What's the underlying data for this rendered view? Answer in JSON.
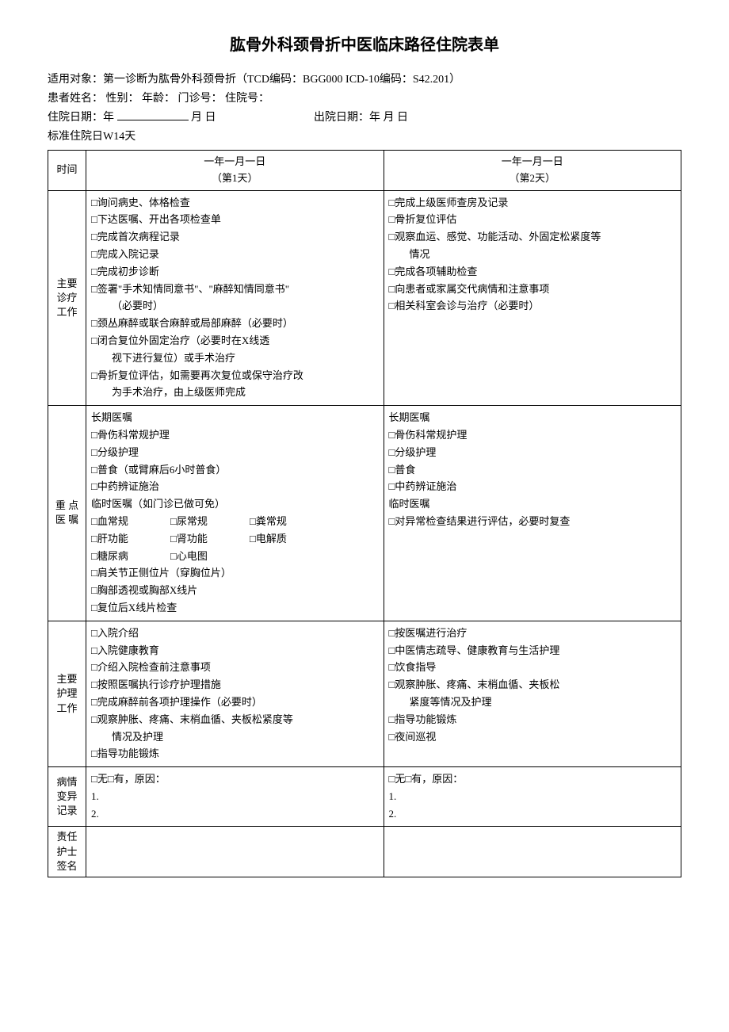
{
  "title": "肱骨外科颈骨折中医临床路径住院表单",
  "meta": {
    "applicable": "适用对象：第一诊断为肱骨外科颈骨折（TCD编码：BGG000 ICD-10编码：S42.201）",
    "patient_line": "患者姓名：  性别：  年龄：  门诊号：  住院号：",
    "admission_label": "住院日期：年",
    "admission_suffix": "月 日",
    "discharge_label": "出院日期：年 月 日",
    "standard_days": "标准住院日W14天"
  },
  "headers": {
    "time": "时间",
    "day1_date": "一年一月一日",
    "day1_sub": "（第1天）",
    "day2_date": "一年一月一日",
    "day2_sub": "（第2天）"
  },
  "rows": {
    "main_work": {
      "label": "主要诊疗工作",
      "day1": [
        "□询问病史、体格检查",
        "□下达医嘱、开出各项检查单",
        "□完成首次病程记录",
        "□完成入院记录",
        "□完成初步诊断",
        "□签署\"手术知情同意书\"、\"麻醉知情同意书\"",
        "  （必要时）",
        "□颈丛麻醉或联合麻醉或局部麻醉（必要时）",
        "□闭合复位外固定治疗（必要时在X线透",
        "  视下进行复位）或手术治疗",
        "□骨折复位评估，如需要再次复位或保守治疗改",
        "  为手术治疗，由上级医师完成"
      ],
      "day2": [
        "□完成上级医师查房及记录",
        "□骨折复位评估",
        "□观察血运、感觉、功能活动、外固定松紧度等",
        "  情况",
        "□完成各项辅助检查",
        "□向患者或家属交代病情和注意事项",
        "□相关科室会诊与治疗（必要时）"
      ]
    },
    "orders": {
      "label": "重 点 医 嘱",
      "day1_long_header": "长期医嘱",
      "day1_long": [
        "□骨伤科常规护理",
        "□分级护理",
        "□普食（或臂麻后6小时普食）",
        "□中药辨证施治"
      ],
      "day1_temp_header": "临时医嘱（如门诊已做可免）",
      "day1_temp_row1": [
        "□血常规",
        "□尿常规",
        "□粪常规"
      ],
      "day1_temp_row2": [
        "□肝功能",
        "□肾功能",
        "□电解质"
      ],
      "day1_temp_row3": [
        "□糖尿病",
        "□心电图"
      ],
      "day1_temp_rest": [
        "□肩关节正侧位片（穿胸位片）",
        "□胸部透视或胸部X线片",
        "□复位后X线片检查"
      ],
      "day2_long_header": "长期医嘱",
      "day2_long": [
        "□骨伤科常规护理",
        "□分级护理",
        "□普食",
        "□中药辨证施治"
      ],
      "day2_temp_header": "临时医嘱",
      "day2_temp": [
        "□对异常检查结果进行评估，必要时复查"
      ]
    },
    "nursing": {
      "label": "主要 护理 工作",
      "day1": [
        "□入院介绍",
        "□入院健康教育",
        "□介绍入院检查前注意事项",
        "□按照医嘱执行诊疗护理措施",
        "□完成麻醉前各项护理操作（必要时）",
        "□观察肿胀、疼痛、末梢血循、夹板松紧度等",
        "  情况及护理",
        "□指导功能锻炼"
      ],
      "day2": [
        "□按医嘱进行治疗",
        "□中医情志疏导、健康教育与生活护理",
        "□饮食指导",
        "□观察肿胀、疼痛、末梢血循、夹板松",
        "  紧度等情况及护理",
        "□指导功能锻炼",
        "□夜间巡视"
      ]
    },
    "variation": {
      "label": "病情 变异 记录",
      "line1": "□无□有，原因：",
      "line2": "1.",
      "line3": "2."
    },
    "nurse_sign": {
      "label": "责任 护士 签名"
    }
  }
}
